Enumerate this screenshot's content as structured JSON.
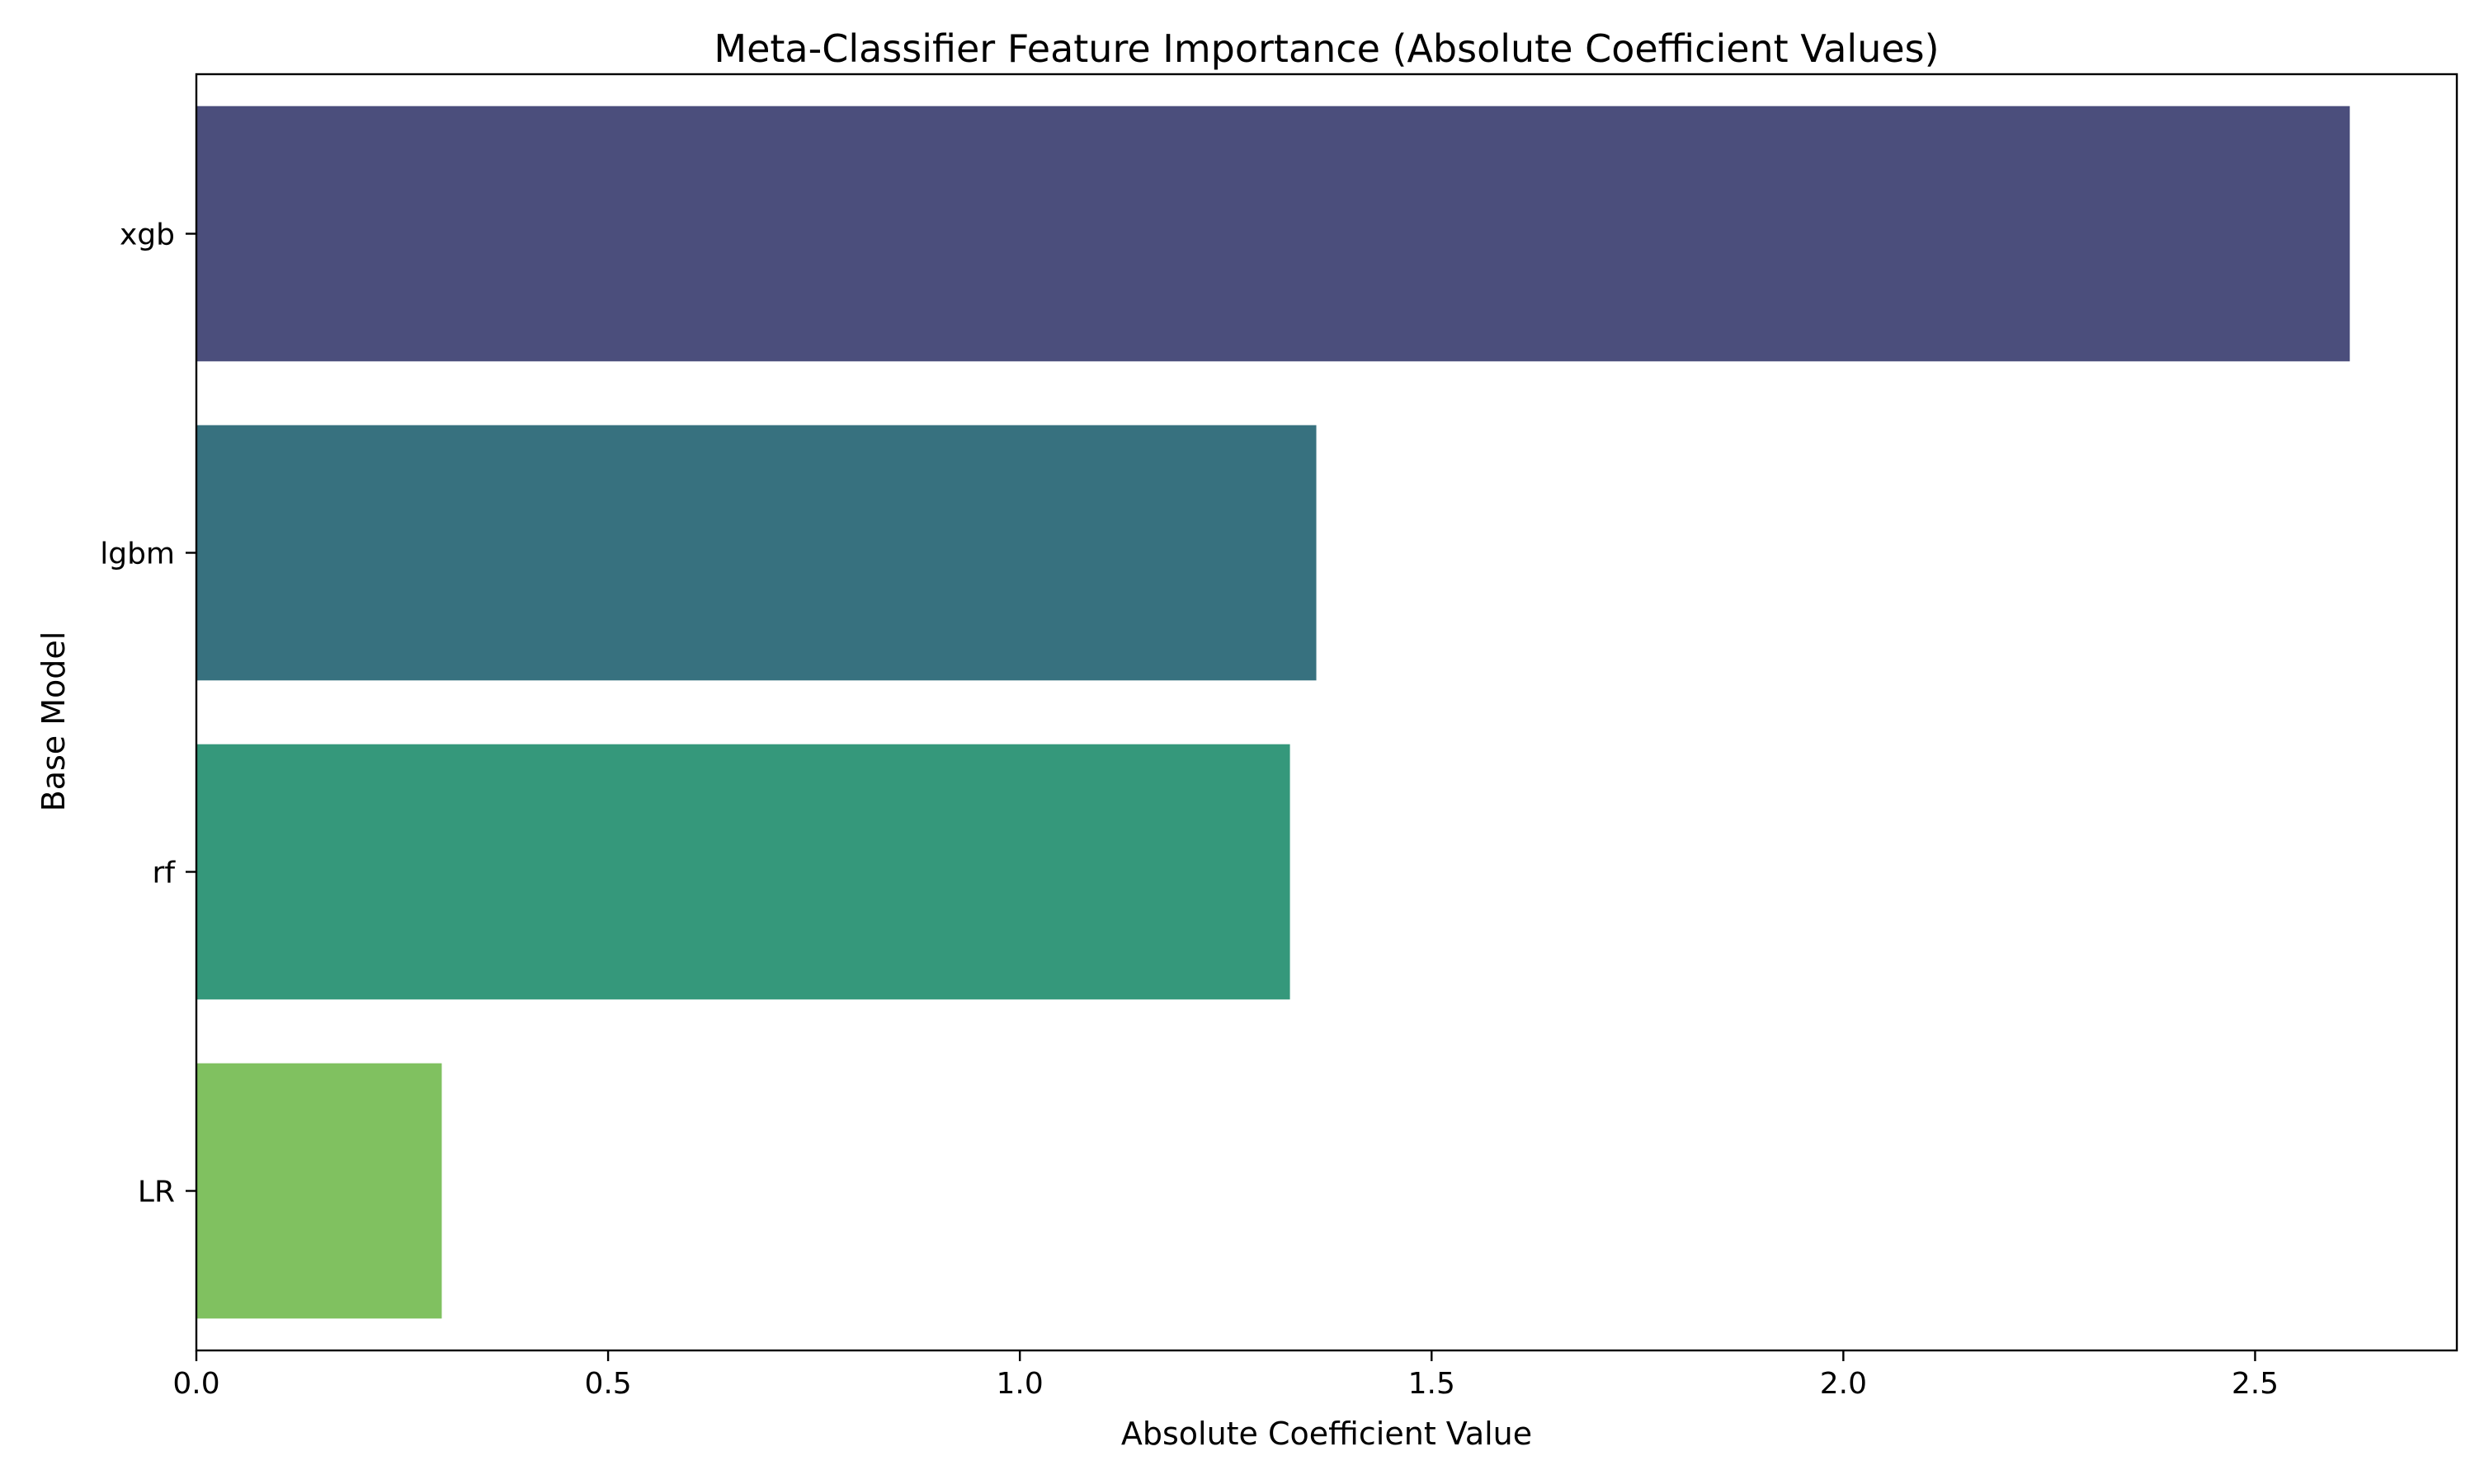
{
  "chart_data": {
    "type": "bar",
    "orientation": "horizontal",
    "title": "Meta-Classifier Feature Importance (Absolute Coefficient Values)",
    "xlabel": "Absolute Coefficient Value",
    "ylabel": "Base Model",
    "categories": [
      "xgb",
      "lgbm",
      "rf",
      "LR"
    ],
    "values": [
      2.615,
      1.36,
      1.328,
      0.298
    ],
    "xlim": [
      0,
      2.745
    ],
    "xticks": [
      0.0,
      0.5,
      1.0,
      1.5,
      2.0,
      2.5
    ],
    "xtick_labels": [
      "0.0",
      "0.5",
      "1.0",
      "1.5",
      "2.0",
      "2.5"
    ],
    "bar_colors": [
      "#4b4e7c",
      "#37717f",
      "#35987b",
      "#80c160"
    ],
    "grid": false,
    "legend": "none"
  }
}
